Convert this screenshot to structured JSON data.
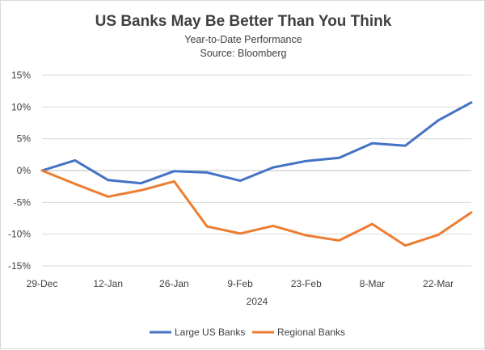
{
  "chart_data": {
    "type": "line",
    "title": "US Banks May Be Better Than You Think",
    "subtitle_line1": "Year-to-Date Performance",
    "subtitle_line2": "Source: Bloomberg",
    "xlabel": "2024",
    "ylabel": "",
    "x_tick_labels": [
      "29-Dec",
      "12-Jan",
      "26-Jan",
      "9-Feb",
      "23-Feb",
      "8-Mar",
      "22-Mar"
    ],
    "y_tick_labels": [
      "15%",
      "10%",
      "5%",
      "0%",
      "-5%",
      "-10%",
      "-15%"
    ],
    "y_tick_values": [
      15,
      10,
      5,
      0,
      -5,
      -10,
      -15
    ],
    "ylim": [
      -15,
      15
    ],
    "x_count": 14,
    "grid": true,
    "legend_position": "bottom",
    "series": [
      {
        "name": "Large US Banks",
        "color": "#4472c4",
        "values": [
          0,
          1.6,
          -1.5,
          -2.0,
          -0.1,
          -0.3,
          -1.6,
          0.5,
          1.5,
          2.0,
          4.3,
          3.9,
          7.9,
          10.7
        ]
      },
      {
        "name": "Regional Banks",
        "color": "#ed7d31",
        "values": [
          0,
          -2.1,
          -4.1,
          -3.1,
          -1.7,
          -8.8,
          -9.9,
          -8.7,
          -10.2,
          -11.0,
          -8.4,
          -11.8,
          -10.1,
          -6.6
        ]
      }
    ]
  }
}
